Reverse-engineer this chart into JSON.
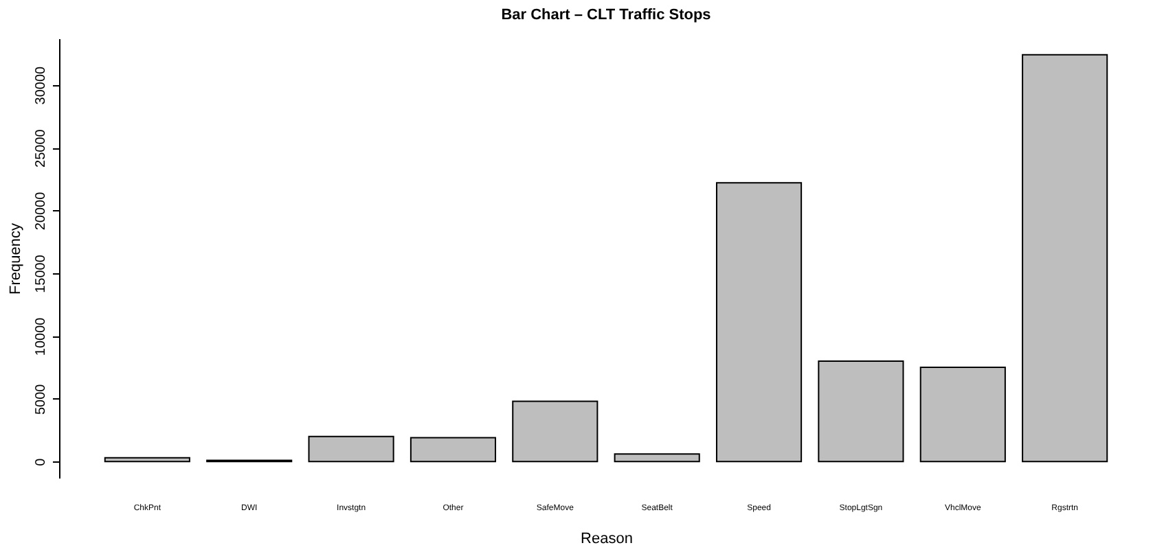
{
  "chart_data": {
    "type": "bar",
    "title": "Bar Chart – CLT Traffic Stops",
    "xlabel": "Reason",
    "ylabel": "Frequency",
    "categories": [
      "ChkPnt",
      "DWI",
      "Invstgtn",
      "Other",
      "SafeMove",
      "SeatBelt",
      "Speed",
      "StopLgtSgn",
      "VhclMove",
      "Rgstrtn"
    ],
    "values": [
      300,
      100,
      2000,
      1900,
      4800,
      600,
      22200,
      8000,
      7500,
      32400
    ],
    "color": "#bebebe",
    "ylim": [
      -1300,
      33700
    ],
    "yticks": [
      0,
      5000,
      10000,
      15000,
      20000,
      25000,
      30000
    ],
    "grid": false
  }
}
